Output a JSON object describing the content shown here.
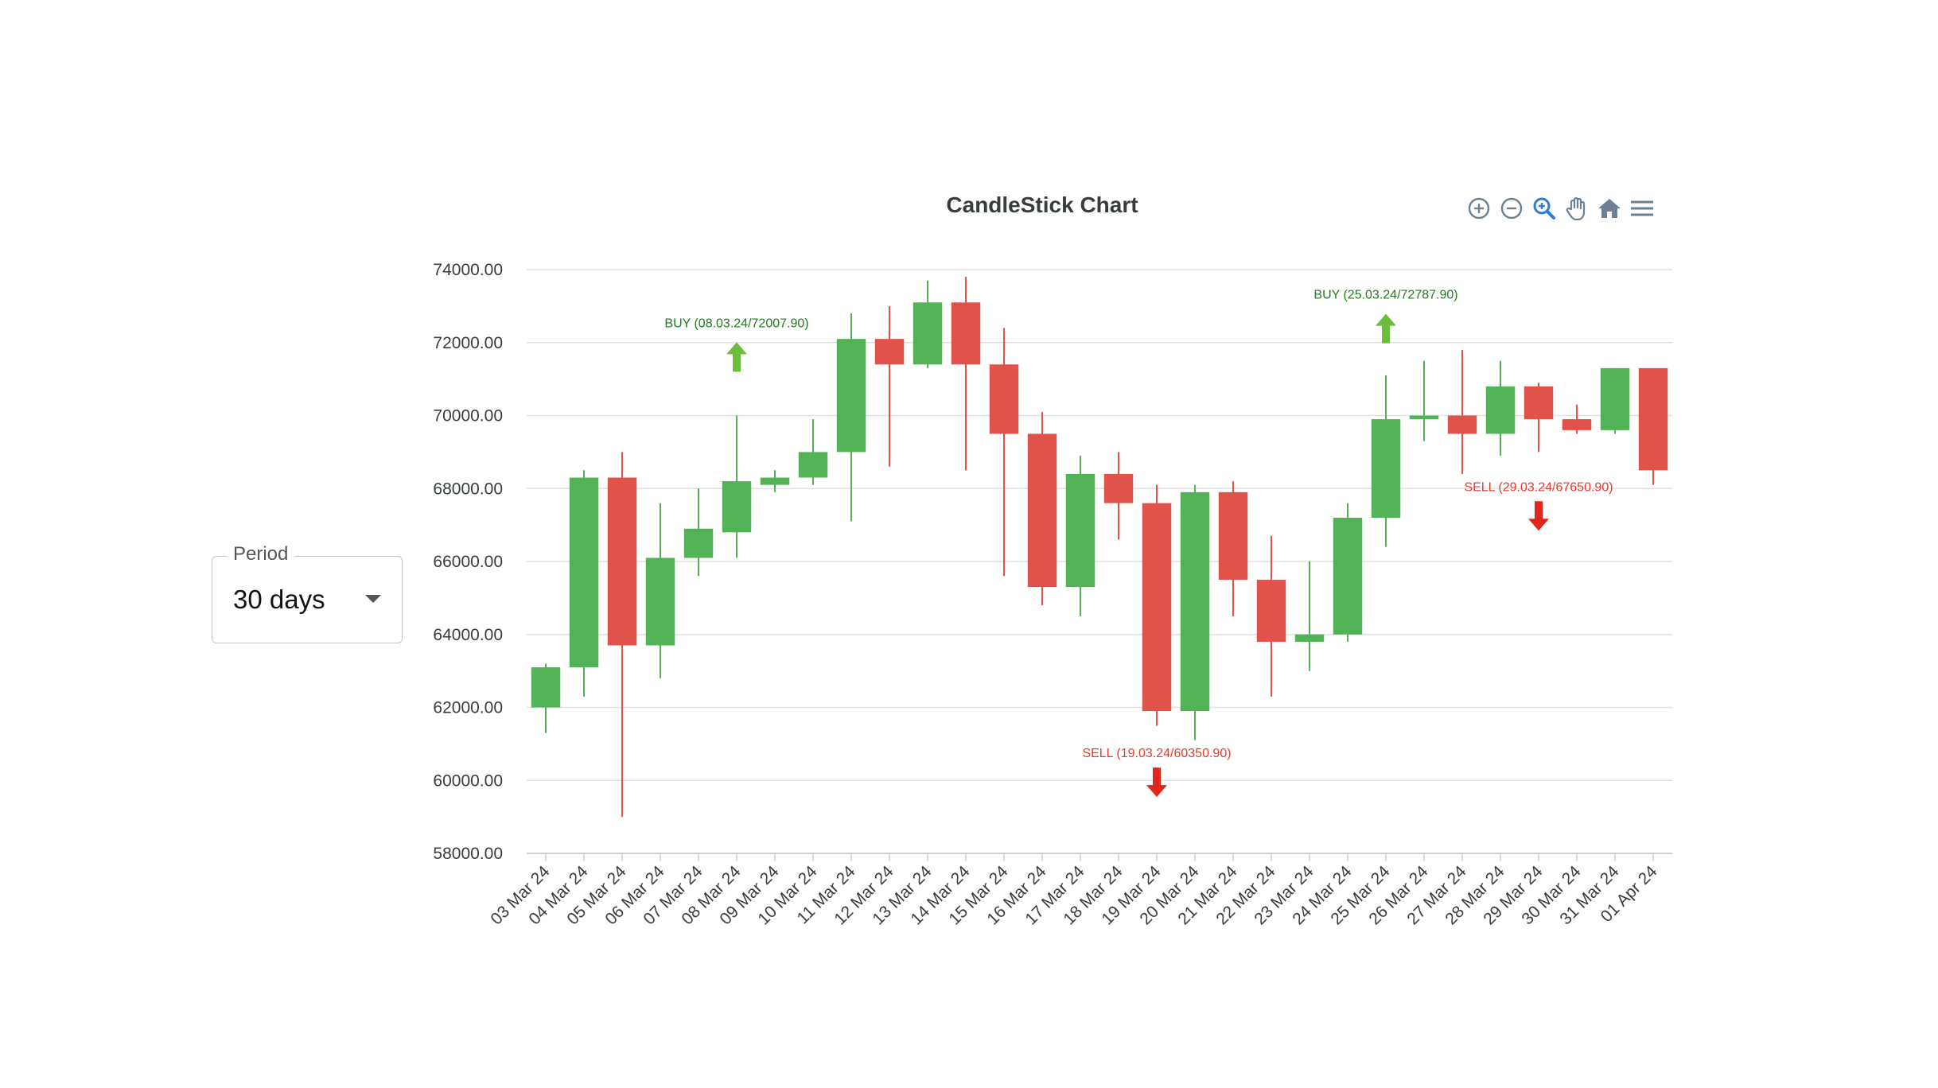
{
  "period": {
    "label": "Period",
    "value": "30 days"
  },
  "toolbar": {
    "tools": [
      "zoom-in-icon",
      "zoom-out-icon",
      "selection-zoom-icon",
      "pan-icon",
      "reset-home-icon",
      "menu-icon"
    ]
  },
  "colors": {
    "up": "#52b256",
    "down": "#e0524a",
    "grid": "#e0e0e0",
    "buy": "#1e7d1e",
    "sell": "#e33b2e",
    "buy_arrow": "#6cbd3c",
    "sell_arrow": "#e3261d",
    "active_tool": "#2f7bd8"
  },
  "chart_data": {
    "type": "candlestick",
    "title": "CandleStick Chart",
    "ylim": [
      58000,
      74000
    ],
    "yticks": [
      "74000.00",
      "72000.00",
      "70000.00",
      "68000.00",
      "66000.00",
      "64000.00",
      "62000.00",
      "60000.00",
      "58000.00"
    ],
    "grid": true,
    "candles": [
      {
        "date": "03 Mar 24",
        "open": 62000,
        "high": 63200,
        "low": 61300,
        "close": 63100
      },
      {
        "date": "04 Mar 24",
        "open": 63100,
        "high": 68500,
        "low": 62300,
        "close": 68300
      },
      {
        "date": "05 Mar 24",
        "open": 68300,
        "high": 69000,
        "low": 59000,
        "close": 63700
      },
      {
        "date": "06 Mar 24",
        "open": 63700,
        "high": 67600,
        "low": 62800,
        "close": 66100
      },
      {
        "date": "07 Mar 24",
        "open": 66100,
        "high": 68000,
        "low": 65600,
        "close": 66900
      },
      {
        "date": "08 Mar 24",
        "open": 66800,
        "high": 70000,
        "low": 66100,
        "close": 68200
      },
      {
        "date": "09 Mar 24",
        "open": 68100,
        "high": 68500,
        "low": 67900,
        "close": 68300
      },
      {
        "date": "10 Mar 24",
        "open": 68300,
        "high": 69900,
        "low": 68100,
        "close": 69000
      },
      {
        "date": "11 Mar 24",
        "open": 69000,
        "high": 72800,
        "low": 67100,
        "close": 72100
      },
      {
        "date": "12 Mar 24",
        "open": 72100,
        "high": 73000,
        "low": 68600,
        "close": 71400
      },
      {
        "date": "13 Mar 24",
        "open": 71400,
        "high": 73700,
        "low": 71300,
        "close": 73100
      },
      {
        "date": "14 Mar 24",
        "open": 73100,
        "high": 73800,
        "low": 68500,
        "close": 71400
      },
      {
        "date": "15 Mar 24",
        "open": 71400,
        "high": 72400,
        "low": 65600,
        "close": 69500
      },
      {
        "date": "16 Mar 24",
        "open": 69500,
        "high": 70100,
        "low": 64800,
        "close": 65300
      },
      {
        "date": "17 Mar 24",
        "open": 65300,
        "high": 68900,
        "low": 64500,
        "close": 68400
      },
      {
        "date": "18 Mar 24",
        "open": 68400,
        "high": 69000,
        "low": 66600,
        "close": 67600
      },
      {
        "date": "19 Mar 24",
        "open": 67600,
        "high": 68100,
        "low": 61500,
        "close": 61900
      },
      {
        "date": "20 Mar 24",
        "open": 61900,
        "high": 68100,
        "low": 61100,
        "close": 67900
      },
      {
        "date": "21 Mar 24",
        "open": 67900,
        "high": 68200,
        "low": 64500,
        "close": 65500
      },
      {
        "date": "22 Mar 24",
        "open": 65500,
        "high": 66700,
        "low": 62300,
        "close": 63800
      },
      {
        "date": "23 Mar 24",
        "open": 63800,
        "high": 66000,
        "low": 63000,
        "close": 64000
      },
      {
        "date": "24 Mar 24",
        "open": 64000,
        "high": 67600,
        "low": 63800,
        "close": 67200
      },
      {
        "date": "25 Mar 24",
        "open": 67200,
        "high": 71100,
        "low": 66400,
        "close": 69900
      },
      {
        "date": "26 Mar 24",
        "open": 69900,
        "high": 71500,
        "low": 69300,
        "close": 70000
      },
      {
        "date": "27 Mar 24",
        "open": 70000,
        "high": 71800,
        "low": 68400,
        "close": 69500
      },
      {
        "date": "28 Mar 24",
        "open": 69500,
        "high": 71500,
        "low": 68900,
        "close": 70800
      },
      {
        "date": "29 Mar 24",
        "open": 70800,
        "high": 70900,
        "low": 69000,
        "close": 69900
      },
      {
        "date": "30 Mar 24",
        "open": 69900,
        "high": 70300,
        "low": 69500,
        "close": 69600
      },
      {
        "date": "31 Mar 24",
        "open": 69600,
        "high": 71300,
        "low": 69500,
        "close": 71300
      },
      {
        "date": "01 Apr 24",
        "open": 71300,
        "high": 71300,
        "low": 68100,
        "close": 68500
      }
    ],
    "annotations": [
      {
        "type": "buy",
        "label": "BUY (08.03.24/72007.90)",
        "date": "08 Mar 24",
        "price": 72007.9
      },
      {
        "type": "sell",
        "label": "SELL (19.03.24/60350.90)",
        "date": "19 Mar 24",
        "price": 60350.9
      },
      {
        "type": "buy",
        "label": "BUY (25.03.24/72787.90)",
        "date": "25 Mar 24",
        "price": 72787.9
      },
      {
        "type": "sell",
        "label": "SELL (29.03.24/67650.90)",
        "date": "29 Mar 24",
        "price": 67650.9
      }
    ]
  }
}
